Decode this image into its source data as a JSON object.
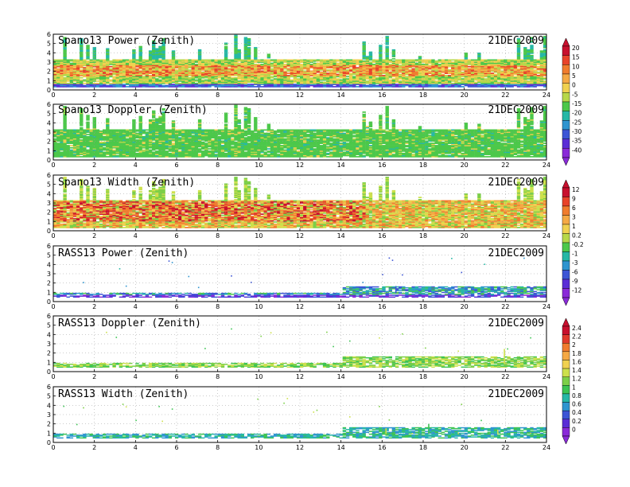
{
  "chart_data": [
    {
      "type": "heatmap",
      "title": "Spano13 Power (Zenith)",
      "date": "21DEC2009",
      "x_ticks": [
        "0",
        "2",
        "4",
        "6",
        "8",
        "10",
        "12",
        "14",
        "16",
        "18",
        "20",
        "22",
        "24"
      ],
      "y_ticks": [
        "0",
        "1",
        "2",
        "3",
        "4",
        "5",
        "6"
      ],
      "xlim": [
        0,
        24
      ],
      "ylim": [
        0,
        6
      ],
      "grid": true,
      "colorbar": "power",
      "description": "Return power vs time and height; dense coverage up to ~3.2 km, strong (orange/red) band at 1.5-2.5 km, tall columns up to 6 km before 6 h and around 8-10, 15-18, 23-24 h"
    },
    {
      "type": "heatmap",
      "title": "Spano13 Doppler (Zenith)",
      "date": "21DEC2009",
      "x_ticks": [
        "0",
        "2",
        "4",
        "6",
        "8",
        "10",
        "12",
        "14",
        "16",
        "18",
        "20",
        "22",
        "24"
      ],
      "y_ticks": [
        "0",
        "1",
        "2",
        "3",
        "4",
        "5",
        "6"
      ],
      "xlim": [
        0,
        24
      ],
      "ylim": [
        0,
        6
      ],
      "grid": true,
      "colorbar": "doppler",
      "description": "Doppler velocity mostly green (near 0 m/s) up to ~3.2 km with cyan and yellow speckles"
    },
    {
      "type": "heatmap",
      "title": "Spano13 Width (Zenith)",
      "date": "21DEC2009",
      "x_ticks": [
        "0",
        "2",
        "4",
        "6",
        "8",
        "10",
        "12",
        "14",
        "16",
        "18",
        "20",
        "22",
        "24"
      ],
      "y_ticks": [
        "0",
        "1",
        "2",
        "3",
        "4",
        "5",
        "6"
      ],
      "xlim": [
        0,
        24
      ],
      "ylim": [
        0,
        6
      ],
      "grid": true,
      "colorbar": "width",
      "description": "Spectral width with red/magenta maxima between 1 and 3 km, mostly before 14 h"
    },
    {
      "type": "heatmap",
      "title": "RASS13 Power (Zenith)",
      "date": "21DEC2009",
      "x_ticks": [
        "0",
        "2",
        "4",
        "6",
        "8",
        "10",
        "12",
        "14",
        "16",
        "18",
        "20",
        "22",
        "24"
      ],
      "y_ticks": [
        "0",
        "1",
        "2",
        "3",
        "4",
        "5",
        "6"
      ],
      "xlim": [
        0,
        24
      ],
      "ylim": [
        0,
        6
      ],
      "grid": true,
      "colorbar": "power",
      "description": "RASS power concentrated near 0.5-1 km (violet/blue), sparse points higher up, more activity 14-23 h"
    },
    {
      "type": "heatmap",
      "title": "RASS13 Doppler (Zenith)",
      "date": "21DEC2009",
      "x_ticks": [
        "0",
        "2",
        "4",
        "6",
        "8",
        "10",
        "12",
        "14",
        "16",
        "18",
        "20",
        "22",
        "24"
      ],
      "y_ticks": [
        "0",
        "1",
        "2",
        "3",
        "4",
        "5",
        "6"
      ],
      "xlim": [
        0,
        24
      ],
      "ylim": [
        0,
        6
      ],
      "grid": true,
      "colorbar": "width",
      "description": "RASS Doppler mostly green near 0.5-1 km with vertical streaks after 14 h"
    },
    {
      "type": "heatmap",
      "title": "RASS13 Width (Zenith)",
      "date": "21DEC2009",
      "x_ticks": [
        "0",
        "2",
        "4",
        "6",
        "8",
        "10",
        "12",
        "14",
        "16",
        "18",
        "20",
        "22",
        "24"
      ],
      "y_ticks": [
        "0",
        "1",
        "2",
        "3",
        "4",
        "5",
        "6"
      ],
      "xlim": [
        0,
        24
      ],
      "ylim": [
        0,
        6
      ],
      "grid": true,
      "colorbar": "width",
      "description": "RASS spectral width mostly cyan/green near 0.5-1 km, scattered points above"
    }
  ],
  "colorbars": {
    "power": {
      "labels": [
        "20",
        "15",
        "10",
        "5",
        "0",
        "-5",
        "-15",
        "-20",
        "-25",
        "-30",
        "-35",
        "-40"
      ],
      "colors": [
        "#c8102e",
        "#e8432a",
        "#f07c2e",
        "#f5a945",
        "#f0d150",
        "#b7d84a",
        "#4cc84a",
        "#26b8a6",
        "#2f95d0",
        "#3d55d6",
        "#5a2ed6",
        "#8a2ad8"
      ]
    },
    "doppler": {
      "labels": [
        "12",
        "9",
        "6",
        "3",
        "1",
        "0.2",
        "-0.2",
        "-1",
        "-3",
        "-6",
        "-9",
        "-12"
      ],
      "colors": [
        "#c8102e",
        "#e8432a",
        "#f07c2e",
        "#f5a945",
        "#f0d150",
        "#b7d84a",
        "#4cc84a",
        "#26b8a6",
        "#2f95d0",
        "#3d55d6",
        "#5a2ed6",
        "#8a2ad8"
      ]
    },
    "width": {
      "labels": [
        "2.4",
        "2.2",
        "2",
        "1.8",
        "1.6",
        "1.4",
        "1.2",
        "1",
        "0.8",
        "0.6",
        "0.4",
        "0.2",
        "0"
      ],
      "colors": [
        "#c8102e",
        "#e03a2c",
        "#f07c2e",
        "#f5a945",
        "#f0d150",
        "#cde04c",
        "#7ccf48",
        "#3cc453",
        "#26b8a6",
        "#2f95d0",
        "#3d55d6",
        "#5a2ed6",
        "#8a2ad8"
      ]
    }
  }
}
